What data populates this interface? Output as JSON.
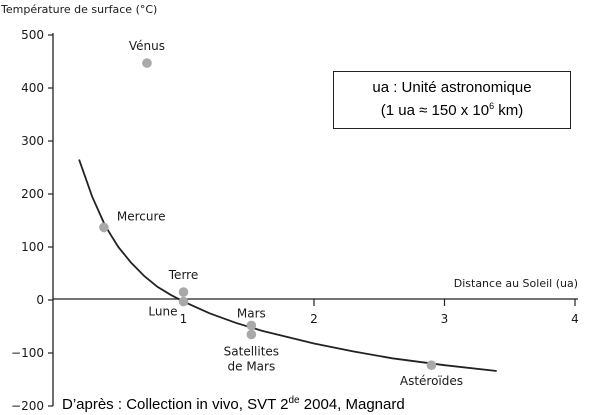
{
  "chart_data": {
    "type": "scatter",
    "ylabel": "Température de surface (°C)",
    "xlabel": "Distance au Soleil (ua)",
    "xlim": [
      0,
      4
    ],
    "ylim": [
      -200,
      500
    ],
    "x_ticks": [
      "1",
      "2",
      "3",
      "4"
    ],
    "y_ticks": [
      "500",
      "400",
      "300",
      "200",
      "100",
      "0",
      "−100",
      "−200"
    ],
    "grid": false,
    "points": [
      {
        "label": "Vénus",
        "x": 0.72,
        "y": 447
      },
      {
        "label": "Mercure",
        "x": 0.39,
        "y": 137
      },
      {
        "label": "Terre",
        "x": 1.0,
        "y": 15
      },
      {
        "label": "Lune",
        "x": 1.0,
        "y": -3
      },
      {
        "label": "Mars",
        "x": 1.52,
        "y": -48
      },
      {
        "label": "Satellites de Mars",
        "x": 1.52,
        "y": -65
      },
      {
        "label": "Astéroïdes",
        "x": 2.9,
        "y": -123
      }
    ],
    "trend_curve": [
      {
        "x": 0.2,
        "y": 265
      },
      {
        "x": 0.3,
        "y": 195
      },
      {
        "x": 0.4,
        "y": 140
      },
      {
        "x": 0.5,
        "y": 100
      },
      {
        "x": 0.6,
        "y": 70
      },
      {
        "x": 0.7,
        "y": 45
      },
      {
        "x": 0.8,
        "y": 25
      },
      {
        "x": 0.9,
        "y": 10
      },
      {
        "x": 1.0,
        "y": -3
      },
      {
        "x": 1.2,
        "y": -25
      },
      {
        "x": 1.4,
        "y": -43
      },
      {
        "x": 1.6,
        "y": -58
      },
      {
        "x": 1.8,
        "y": -70
      },
      {
        "x": 2.0,
        "y": -82
      },
      {
        "x": 2.3,
        "y": -97
      },
      {
        "x": 2.6,
        "y": -110
      },
      {
        "x": 3.0,
        "y": -123
      },
      {
        "x": 3.4,
        "y": -134
      }
    ],
    "marker_color": "#a9a9a9",
    "line_color": "#222222"
  },
  "info_box": {
    "line1": "ua : Unité astronomique",
    "line2_pre": "(1 ua ≈ 150 x 10",
    "line2_sup": "6",
    "line2_post": " km)"
  },
  "source": {
    "pre": "D’après : Collection in vivo, SVT 2",
    "sup": "de",
    "post": "  2004, Magnard"
  }
}
